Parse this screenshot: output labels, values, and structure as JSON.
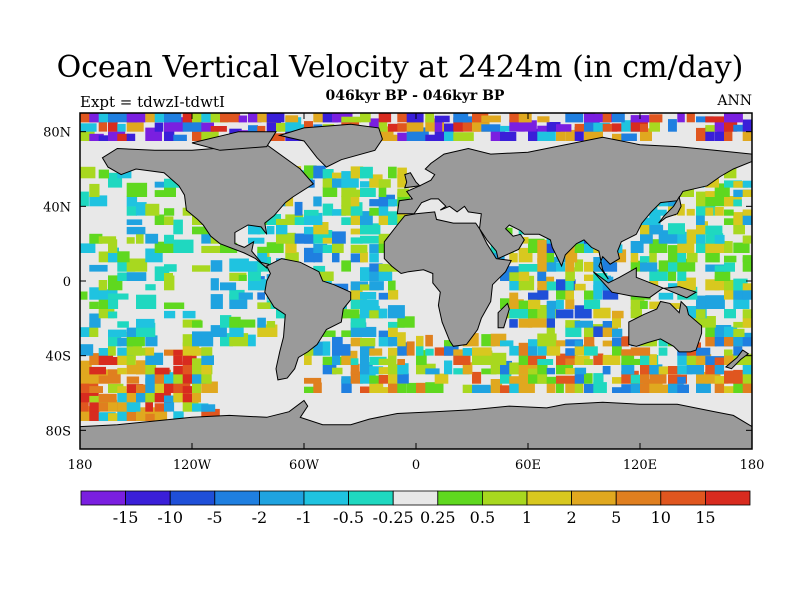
{
  "title": "Ocean Vertical Velocity at 2424m (in cm/day)",
  "subtitle": "046kyr BP - 046kyr BP",
  "left_label": "Expt = tdwzI-tdwtI",
  "right_label": "ANN",
  "colors": {
    "land": "#9a9a9a",
    "near_zero": "#e8e8e8",
    "coastline": "#000000",
    "frame": "#000000"
  },
  "chart_data": {
    "type": "heatmap",
    "title": "Ocean Vertical Velocity at 2424m (in cm/day)",
    "variable": "Ocean Vertical Velocity",
    "units": "cm/day",
    "depth": "2424m",
    "season": "ANN",
    "projection": "cylindrical equidistant",
    "xlim": [
      -180,
      180
    ],
    "ylim": [
      -90,
      90
    ],
    "x_ticks": [
      {
        "value": -180,
        "label": "180"
      },
      {
        "value": -120,
        "label": "120W"
      },
      {
        "value": -60,
        "label": "60W"
      },
      {
        "value": 0,
        "label": "0"
      },
      {
        "value": 60,
        "label": "60E"
      },
      {
        "value": 120,
        "label": "120E"
      },
      {
        "value": 180,
        "label": "180"
      }
    ],
    "y_ticks": [
      {
        "value": 80,
        "label": "80N"
      },
      {
        "value": 40,
        "label": "40N"
      },
      {
        "value": 0,
        "label": "0"
      },
      {
        "value": -40,
        "label": "40S"
      },
      {
        "value": -80,
        "label": "80S"
      }
    ],
    "colorbar": {
      "levels": [
        "-15",
        "-10",
        "-5",
        "-2",
        "-1",
        "-0.5",
        "-0.25",
        "0.25",
        "0.5",
        "1",
        "2",
        "5",
        "10",
        "15"
      ],
      "colors": [
        "#7a1fe0",
        "#3a1fd8",
        "#1f4fd8",
        "#1f7fe0",
        "#1fa3e0",
        "#1fc3e0",
        "#1fd8c0",
        "#e8e8e8",
        "#5fd81f",
        "#a8d81f",
        "#d8c81f",
        "#e0a81f",
        "#e07f1f",
        "#e0561f",
        "#d82b1f"
      ]
    },
    "field_samples": [
      {
        "lat": 20,
        "lon": -150,
        "level": "near-zero"
      },
      {
        "lat": -20,
        "lon": -130,
        "level": "near-zero"
      },
      {
        "lat": -50,
        "lon": -165,
        "level": "2 to 10"
      },
      {
        "lat": 30,
        "lon": -45,
        "level": "-1 to 1"
      },
      {
        "lat": -45,
        "lon": 60,
        "level": "-2 to 5"
      },
      {
        "lat": 20,
        "lon": 155,
        "level": "near-zero"
      },
      {
        "lat": -55,
        "lon": 140,
        "level": "5 to 15"
      }
    ]
  }
}
